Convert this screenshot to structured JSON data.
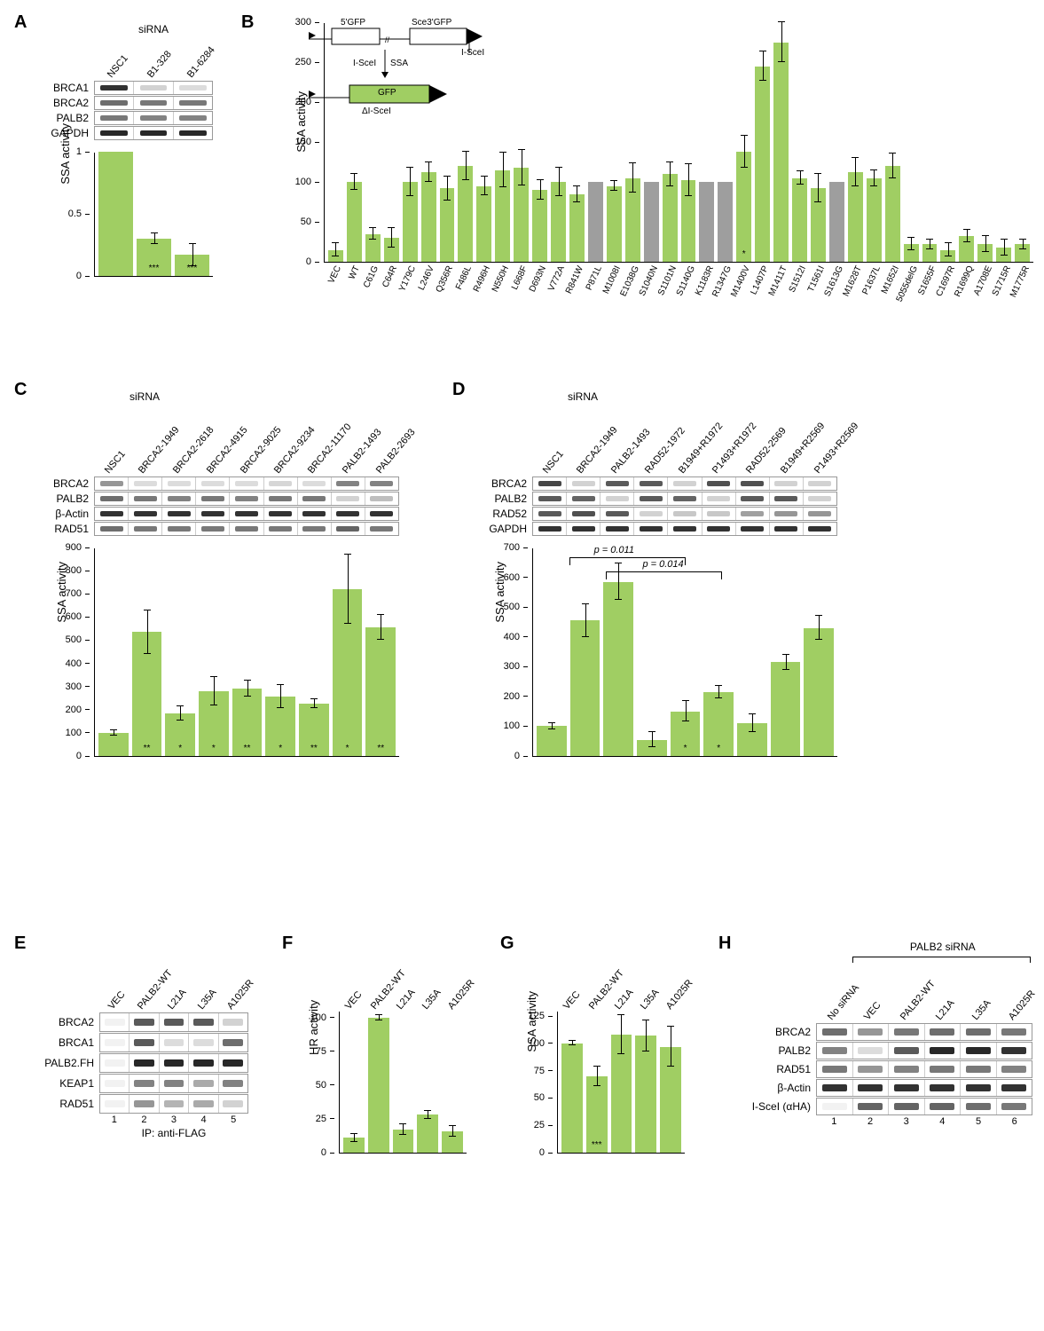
{
  "colors": {
    "bar_green": "#a0ce63",
    "bar_gray": "#9e9e9e",
    "gfp_fill": "#a0ce63",
    "band_dark": "#333333",
    "band_mid": "#777777",
    "band_faint": "#c8c8c8",
    "background": "#ffffff"
  },
  "fonts": {
    "panel_label_pt": 20,
    "axis_pt": 13,
    "tick_pt": 11,
    "xlabel_pt": 10
  },
  "panelA": {
    "label": "A",
    "header": "siRNA",
    "col_labels": [
      "NSC1",
      "B1-328",
      "B1-6284"
    ],
    "blot_panels": [
      {
        "name": "BRCA1",
        "intensities": [
          0.9,
          0.1,
          0.05
        ]
      },
      {
        "name": "BRCA2",
        "intensities": [
          0.6,
          0.55,
          0.55
        ]
      },
      {
        "name": "PALB2",
        "intensities": [
          0.55,
          0.5,
          0.5
        ]
      },
      {
        "name": "GAPDH",
        "intensities": [
          0.95,
          0.95,
          0.95
        ]
      }
    ],
    "chart": {
      "ylabel": "SSA activity",
      "yticks": [
        0.0,
        0.5,
        1.0
      ],
      "ymax": 1.0,
      "bars": [
        {
          "label": "NSC1",
          "value": 1.0,
          "err": 0.0,
          "sig": ""
        },
        {
          "label": "B1-328",
          "value": 0.3,
          "err": 0.04,
          "sig": "***"
        },
        {
          "label": "B1-6284",
          "value": 0.17,
          "err": 0.09,
          "sig": "***"
        }
      ]
    }
  },
  "panelB": {
    "label": "B",
    "schematic_labels": [
      "5'GFP",
      "Sce3'GFP",
      "I-SceI",
      "I-SceI",
      "SSA",
      "GFP",
      "ΔI-SceI"
    ],
    "chart": {
      "ylabel": "SSA activity",
      "yticks": [
        0,
        50,
        100,
        150,
        200,
        250,
        300
      ],
      "ymax": 300,
      "bars": [
        {
          "label": "VEC",
          "value": 15,
          "err": 8,
          "color": "green",
          "sig": ""
        },
        {
          "label": "WT",
          "value": 100,
          "err": 10,
          "color": "green",
          "sig": ""
        },
        {
          "label": "C61G",
          "value": 35,
          "err": 7,
          "color": "green",
          "sig": ""
        },
        {
          "label": "C64R",
          "value": 30,
          "err": 12,
          "color": "green",
          "sig": ""
        },
        {
          "label": "Y179C",
          "value": 100,
          "err": 18,
          "color": "green",
          "sig": ""
        },
        {
          "label": "L246V",
          "value": 112,
          "err": 12,
          "color": "green",
          "sig": ""
        },
        {
          "label": "Q356R",
          "value": 92,
          "err": 15,
          "color": "green",
          "sig": ""
        },
        {
          "label": "F486L",
          "value": 120,
          "err": 18,
          "color": "green",
          "sig": ""
        },
        {
          "label": "R496H",
          "value": 95,
          "err": 12,
          "color": "green",
          "sig": ""
        },
        {
          "label": "N550H",
          "value": 115,
          "err": 22,
          "color": "green",
          "sig": ""
        },
        {
          "label": "L668F",
          "value": 118,
          "err": 22,
          "color": "green",
          "sig": ""
        },
        {
          "label": "D693N",
          "value": 90,
          "err": 12,
          "color": "green",
          "sig": ""
        },
        {
          "label": "V772A",
          "value": 100,
          "err": 18,
          "color": "green",
          "sig": ""
        },
        {
          "label": "R841W",
          "value": 85,
          "err": 10,
          "color": "green",
          "sig": ""
        },
        {
          "label": "P871L",
          "value": 100,
          "err": 0,
          "color": "gray",
          "sig": ""
        },
        {
          "label": "M1008I",
          "value": 95,
          "err": 6,
          "color": "green",
          "sig": ""
        },
        {
          "label": "E1038G",
          "value": 105,
          "err": 18,
          "color": "green",
          "sig": ""
        },
        {
          "label": "S1040N",
          "value": 100,
          "err": 0,
          "color": "gray",
          "sig": ""
        },
        {
          "label": "S1101N",
          "value": 110,
          "err": 15,
          "color": "green",
          "sig": ""
        },
        {
          "label": "S1140G",
          "value": 102,
          "err": 20,
          "color": "green",
          "sig": ""
        },
        {
          "label": "K1183R",
          "value": 100,
          "err": 0,
          "color": "gray",
          "sig": ""
        },
        {
          "label": "R1347G",
          "value": 100,
          "err": 0,
          "color": "gray",
          "sig": ""
        },
        {
          "label": "M1400V",
          "value": 138,
          "err": 20,
          "color": "green",
          "sig": "*"
        },
        {
          "label": "L1407P",
          "value": 245,
          "err": 18,
          "color": "green",
          "sig": ""
        },
        {
          "label": "M1411T",
          "value": 275,
          "err": 25,
          "color": "green",
          "sig": ""
        },
        {
          "label": "S1512I",
          "value": 105,
          "err": 8,
          "color": "green",
          "sig": ""
        },
        {
          "label": "T1561I",
          "value": 92,
          "err": 18,
          "color": "green",
          "sig": ""
        },
        {
          "label": "S1613G",
          "value": 100,
          "err": 0,
          "color": "gray",
          "sig": ""
        },
        {
          "label": "M1628T",
          "value": 112,
          "err": 18,
          "color": "green",
          "sig": ""
        },
        {
          "label": "P1637L",
          "value": 105,
          "err": 10,
          "color": "green",
          "sig": ""
        },
        {
          "label": "M1652I",
          "value": 120,
          "err": 16,
          "color": "green",
          "sig": ""
        },
        {
          "label": "5055delG",
          "value": 22,
          "err": 8,
          "color": "green",
          "sig": ""
        },
        {
          "label": "S1655F",
          "value": 22,
          "err": 6,
          "color": "green",
          "sig": ""
        },
        {
          "label": "C1697R",
          "value": 15,
          "err": 8,
          "color": "green",
          "sig": ""
        },
        {
          "label": "R1699Q",
          "value": 32,
          "err": 8,
          "color": "green",
          "sig": ""
        },
        {
          "label": "A1708E",
          "value": 22,
          "err": 10,
          "color": "green",
          "sig": ""
        },
        {
          "label": "S1715R",
          "value": 18,
          "err": 10,
          "color": "green",
          "sig": ""
        },
        {
          "label": "M1775R",
          "value": 22,
          "err": 6,
          "color": "green",
          "sig": ""
        }
      ]
    }
  },
  "panelC": {
    "label": "C",
    "header": "siRNA",
    "col_labels": [
      "NSC1",
      "BRCA2-1949",
      "BRCA2-2618",
      "BRCA2-4915",
      "BRCA2-9025",
      "BRCA2-9234",
      "BRCA2-11170",
      "PALB2-1493",
      "PALB2-2693"
    ],
    "blot_panels": [
      {
        "name": "BRCA2",
        "intensities": [
          0.4,
          0.05,
          0.05,
          0.05,
          0.05,
          0.08,
          0.05,
          0.5,
          0.5
        ]
      },
      {
        "name": "PALB2",
        "intensities": [
          0.6,
          0.55,
          0.5,
          0.55,
          0.5,
          0.55,
          0.55,
          0.1,
          0.2
        ]
      },
      {
        "name": "β-Actin",
        "intensities": [
          0.9,
          0.9,
          0.9,
          0.9,
          0.9,
          0.9,
          0.9,
          0.9,
          0.9
        ]
      },
      {
        "name": "RAD51",
        "intensities": [
          0.6,
          0.55,
          0.55,
          0.55,
          0.55,
          0.55,
          0.55,
          0.65,
          0.55
        ]
      }
    ],
    "chart": {
      "ylabel": "SSA activity",
      "yticks": [
        0,
        100,
        200,
        300,
        400,
        500,
        600,
        700,
        800,
        900
      ],
      "ymax": 900,
      "bars": [
        {
          "label": "NSC1",
          "value": 100,
          "err": 10,
          "sig": ""
        },
        {
          "label": "BRCA2-1949",
          "value": 535,
          "err": 95,
          "sig": "**"
        },
        {
          "label": "BRCA2-2618",
          "value": 185,
          "err": 30,
          "sig": "*"
        },
        {
          "label": "BRCA2-4915",
          "value": 280,
          "err": 60,
          "sig": "*"
        },
        {
          "label": "BRCA2-9025",
          "value": 290,
          "err": 35,
          "sig": "**"
        },
        {
          "label": "BRCA2-9234",
          "value": 255,
          "err": 50,
          "sig": "*"
        },
        {
          "label": "BRCA2-11170",
          "value": 225,
          "err": 20,
          "sig": "**"
        },
        {
          "label": "PALB2-1493",
          "value": 720,
          "err": 150,
          "sig": "*"
        },
        {
          "label": "PALB2-2693",
          "value": 555,
          "err": 55,
          "sig": "**"
        }
      ]
    }
  },
  "panelD": {
    "label": "D",
    "header": "siRNA",
    "col_labels": [
      "NSC1",
      "BRCA2-1949",
      "PALB2-1493",
      "RAD52-1972",
      "B1949+R1972",
      "P1493+R1972",
      "RAD52-2569",
      "B1949+R2569",
      "P1493+R2569"
    ],
    "blot_panels": [
      {
        "name": "BRCA2",
        "intensities": [
          0.8,
          0.1,
          0.7,
          0.7,
          0.1,
          0.75,
          0.75,
          0.1,
          0.1
        ]
      },
      {
        "name": "PALB2",
        "intensities": [
          0.7,
          0.65,
          0.1,
          0.7,
          0.65,
          0.1,
          0.7,
          0.7,
          0.1
        ]
      },
      {
        "name": "RAD52",
        "intensities": [
          0.7,
          0.75,
          0.7,
          0.1,
          0.15,
          0.15,
          0.35,
          0.4,
          0.4
        ]
      },
      {
        "name": "GAPDH",
        "intensities": [
          0.9,
          0.9,
          0.9,
          0.9,
          0.9,
          0.9,
          0.9,
          0.9,
          0.9
        ]
      }
    ],
    "chart": {
      "ylabel": "SSA activity",
      "yticks": [
        0,
        100,
        200,
        300,
        400,
        500,
        600,
        700
      ],
      "ymax": 700,
      "p_labels": [
        "p = 0.011",
        "p = 0.014"
      ],
      "bars": [
        {
          "label": "NSC1",
          "value": 100,
          "err": 10,
          "sig": ""
        },
        {
          "label": "BRCA2-1949",
          "value": 455,
          "err": 55,
          "sig": ""
        },
        {
          "label": "PALB2-1493",
          "value": 585,
          "err": 60,
          "sig": ""
        },
        {
          "label": "RAD52-1972",
          "value": 55,
          "err": 25,
          "sig": ""
        },
        {
          "label": "B1949+R1972",
          "value": 150,
          "err": 35,
          "sig": "*"
        },
        {
          "label": "P1493+R1972",
          "value": 215,
          "err": 20,
          "sig": "*"
        },
        {
          "label": "RAD52-2569",
          "value": 110,
          "err": 30,
          "sig": ""
        },
        {
          "label": "B1949+R2569",
          "value": 315,
          "err": 25,
          "sig": ""
        },
        {
          "label": "P1493+R2569",
          "value": 430,
          "err": 40,
          "sig": ""
        }
      ]
    }
  },
  "panelE": {
    "label": "E",
    "col_labels": [
      "VEC",
      "PALB2-WT",
      "L21A",
      "L35A",
      "A1025R"
    ],
    "blot_panels": [
      {
        "name": "BRCA2",
        "intensities": [
          0.02,
          0.7,
          0.7,
          0.7,
          0.1
        ]
      },
      {
        "name": "BRCA1",
        "intensities": [
          0.02,
          0.7,
          0.05,
          0.05,
          0.6
        ]
      },
      {
        "name": "PALB2.FH",
        "intensities": [
          0.02,
          0.95,
          0.95,
          0.95,
          0.95
        ]
      },
      {
        "name": "KEAP1",
        "intensities": [
          0.02,
          0.5,
          0.5,
          0.3,
          0.5
        ]
      },
      {
        "name": "RAD51",
        "intensities": [
          0.02,
          0.4,
          0.25,
          0.3,
          0.1
        ]
      }
    ],
    "lane_numbers": [
      1,
      2,
      3,
      4,
      5
    ],
    "footer": "IP: anti-FLAG"
  },
  "panelF": {
    "label": "F",
    "col_labels": [
      "VEC",
      "PALB2-WT",
      "L21A",
      "L35A",
      "A1025R"
    ],
    "chart": {
      "ylabel": "HR activity",
      "yticks": [
        0,
        25,
        50,
        75,
        100
      ],
      "ymax": 105,
      "bars": [
        {
          "label": "VEC",
          "value": 11,
          "err": 3,
          "sig": ""
        },
        {
          "label": "PALB2-WT",
          "value": 100,
          "err": 2,
          "sig": ""
        },
        {
          "label": "L21A",
          "value": 17,
          "err": 4,
          "sig": ""
        },
        {
          "label": "L35A",
          "value": 28,
          "err": 3,
          "sig": ""
        },
        {
          "label": "A1025R",
          "value": 16,
          "err": 4,
          "sig": ""
        }
      ]
    }
  },
  "panelG": {
    "label": "G",
    "col_labels": [
      "VEC",
      "PALB2-WT",
      "L21A",
      "L35A",
      "A1025R"
    ],
    "chart": {
      "ylabel": "SSA activity",
      "yticks": [
        0,
        25,
        50,
        75,
        100,
        125
      ],
      "ymax": 130,
      "bars": [
        {
          "label": "VEC",
          "value": 100,
          "err": 2,
          "sig": ""
        },
        {
          "label": "PALB2-WT",
          "value": 70,
          "err": 9,
          "sig": "***"
        },
        {
          "label": "L21A",
          "value": 108,
          "err": 18,
          "sig": ""
        },
        {
          "label": "L35A",
          "value": 107,
          "err": 14,
          "sig": ""
        },
        {
          "label": "A1025R",
          "value": 97,
          "err": 18,
          "sig": ""
        }
      ]
    }
  },
  "panelH": {
    "label": "H",
    "bracket_label": "PALB2 siRNA",
    "col_labels": [
      "No siRNA",
      "VEC",
      "PALB2-WT",
      "L21A",
      "L35A",
      "A1025R"
    ],
    "blot_panels": [
      {
        "name": "BRCA2",
        "intensities": [
          0.6,
          0.4,
          0.55,
          0.6,
          0.6,
          0.55
        ]
      },
      {
        "name": "PALB2",
        "intensities": [
          0.5,
          0.05,
          0.7,
          0.95,
          0.95,
          0.9
        ]
      },
      {
        "name": "RAD51",
        "intensities": [
          0.55,
          0.4,
          0.5,
          0.55,
          0.55,
          0.5
        ]
      },
      {
        "name": "β-Actin",
        "intensities": [
          0.9,
          0.9,
          0.9,
          0.9,
          0.9,
          0.9
        ]
      },
      {
        "name": "I-SceI (αHA)",
        "intensities": [
          0.0,
          0.65,
          0.65,
          0.65,
          0.6,
          0.55
        ]
      }
    ],
    "lane_numbers": [
      1,
      2,
      3,
      4,
      5,
      6
    ]
  }
}
